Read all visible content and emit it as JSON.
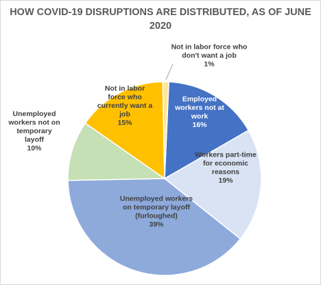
{
  "chart_data": {
    "type": "pie",
    "title": "HOW COVID-19 DISRUPTIONS ARE DISTRIBUTED, AS OF JUNE 2020",
    "title_lines": [
      "HOW COVID-19 DISRUPTIONS ARE DISTRIBUTED, AS OF JUNE",
      "2020"
    ],
    "slices": [
      {
        "label": "Employed workers not at work",
        "lines": [
          "Employed",
          "workers not at",
          "work",
          "16%"
        ],
        "value": 16,
        "color": "#4472c4",
        "text_color": "#ffffff"
      },
      {
        "label": "Workers part-time for economic reasons",
        "lines": [
          "Workers part-time",
          "for economic",
          "reasons",
          "19%"
        ],
        "value": 19,
        "color": "#dae3f3",
        "text_color": "#404040"
      },
      {
        "label": "Unemployed workers on temporary layoff (furloughed)",
        "lines": [
          "Unemployed workers",
          "on temporary layoff",
          "(furloughed)",
          "39%"
        ],
        "value": 39,
        "color": "#8eaadb",
        "text_color": "#404040"
      },
      {
        "label": "Unemployed workers not on temporary layoff",
        "lines": [
          "Unemployed",
          "workers not on",
          "temporary",
          "layoff",
          "10%"
        ],
        "value": 10,
        "color": "#c5e0b4",
        "text_color": "#404040"
      },
      {
        "label": "Not in labor force who currently want a job",
        "lines": [
          "Not in labor",
          "force who",
          "currently want a",
          "job",
          "15%"
        ],
        "value": 15,
        "color": "#ffc000",
        "text_color": "#404040"
      },
      {
        "label": "Not in labor force who don't want a job",
        "lines": [
          "Not in labor force who",
          "don't want a job",
          "1%"
        ],
        "value": 1,
        "color": "#ffe699",
        "text_color": "#404040"
      }
    ],
    "slice_border_color": "#ffffff"
  }
}
